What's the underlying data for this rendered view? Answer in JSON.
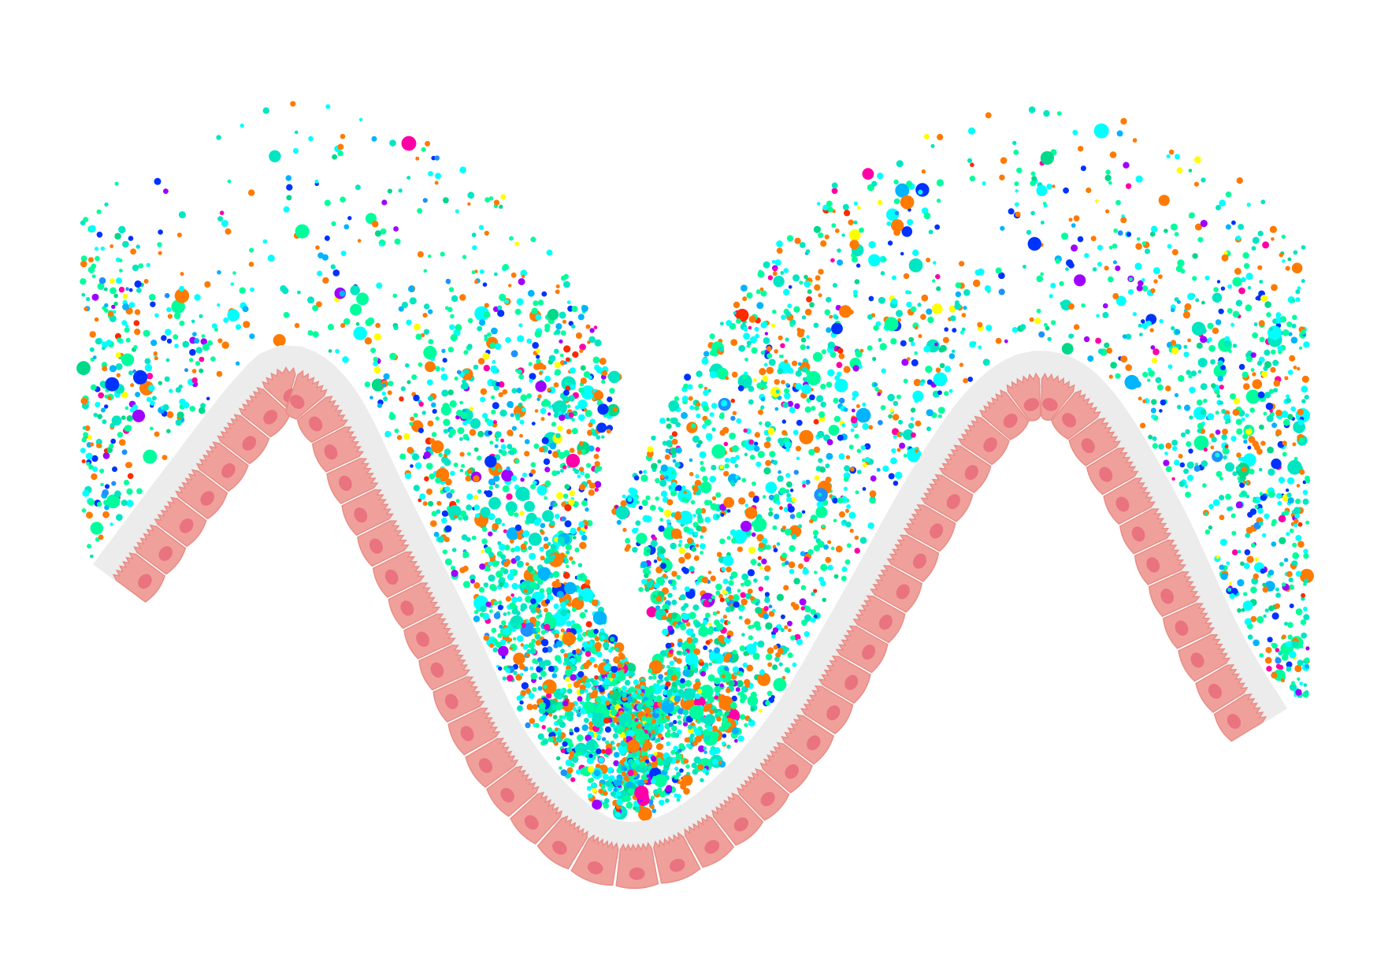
{
  "figure": {
    "background": "#ffffff",
    "layers": [
      {
        "name": "mucus-layer",
        "fill": "#ececec"
      },
      {
        "name": "epithelial-layer",
        "fill": "#f0a09a",
        "outline": "#e88d87"
      },
      {
        "name": "cell-nuclei",
        "fill": "#ea7380"
      },
      {
        "name": "microbiota-particles",
        "palette": [
          "#00e6c3",
          "#00ff9c",
          "#00ffff",
          "#ff7a00",
          "#0032ff",
          "#00b4ff",
          "#a000ff",
          "#ff00a8",
          "#ffff00",
          "#ff2a00",
          "#00d98a",
          "#1e90ff"
        ]
      }
    ],
    "epithelial_cell_count": 56,
    "particle_count": 6200
  }
}
